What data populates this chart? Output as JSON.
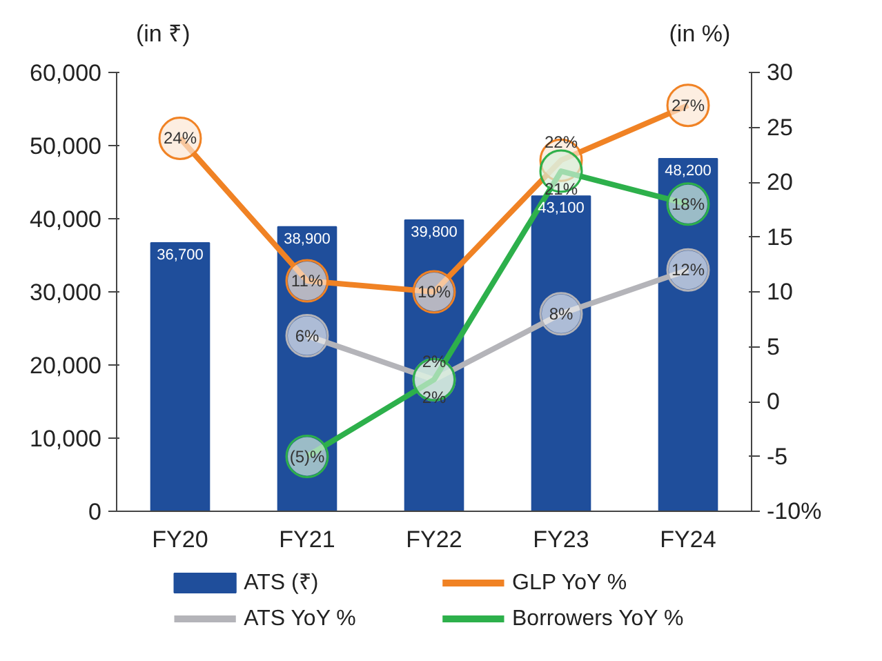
{
  "chart_data": {
    "type": "bar",
    "ylabel": "(in ₹)",
    "y2label": "(in %)",
    "categories": [
      "FY20",
      "FY21",
      "FY22",
      "FY23",
      "FY24"
    ],
    "ylim": [
      0,
      60000
    ],
    "yticks": [
      {
        "value": 0,
        "label": "0"
      },
      {
        "value": 10000,
        "label": "10,000"
      },
      {
        "value": 20000,
        "label": "20,000"
      },
      {
        "value": 30000,
        "label": "30,000"
      },
      {
        "value": 40000,
        "label": "40,000"
      },
      {
        "value": 50000,
        "label": "50,000"
      },
      {
        "value": 60000,
        "label": "60,000"
      }
    ],
    "y2lim": [
      -10,
      30
    ],
    "y2ticks": [
      {
        "value": -10,
        "label": "-10%"
      },
      -5,
      0,
      5,
      10,
      15,
      20,
      25,
      30
    ],
    "grid": false,
    "legend": "bottom",
    "marker": "circle",
    "series": [
      {
        "name": "ATS (₹)",
        "color": "#1f4e9b",
        "values": [
          36700,
          38900,
          39800,
          43100,
          48200
        ],
        "value_labels": [
          "36,700",
          "38,900",
          "39,800",
          "43,100",
          "48,200"
        ]
      },
      {
        "name": "GLP YoY %",
        "type": "line",
        "axis": "y2",
        "color": "#f08224",
        "values": [
          24,
          11,
          10,
          22,
          27
        ],
        "value_labels": [
          "24%",
          "11%",
          "10%",
          "22%",
          "27%"
        ]
      },
      {
        "name": "ATS YoY %",
        "type": "line",
        "axis": "y2",
        "color": "#b4b4b9",
        "values": [
          null,
          6,
          2,
          8,
          12
        ],
        "value_labels": [
          null,
          "6%",
          "2%",
          "8%",
          "12%"
        ]
      },
      {
        "name": "Borrowers YoY %",
        "type": "line",
        "axis": "y2",
        "color": "#2db04b",
        "values": [
          null,
          -5,
          2,
          21,
          18
        ],
        "value_labels": [
          null,
          "(5)%",
          "2%",
          "21%",
          "18%"
        ]
      }
    ]
  }
}
